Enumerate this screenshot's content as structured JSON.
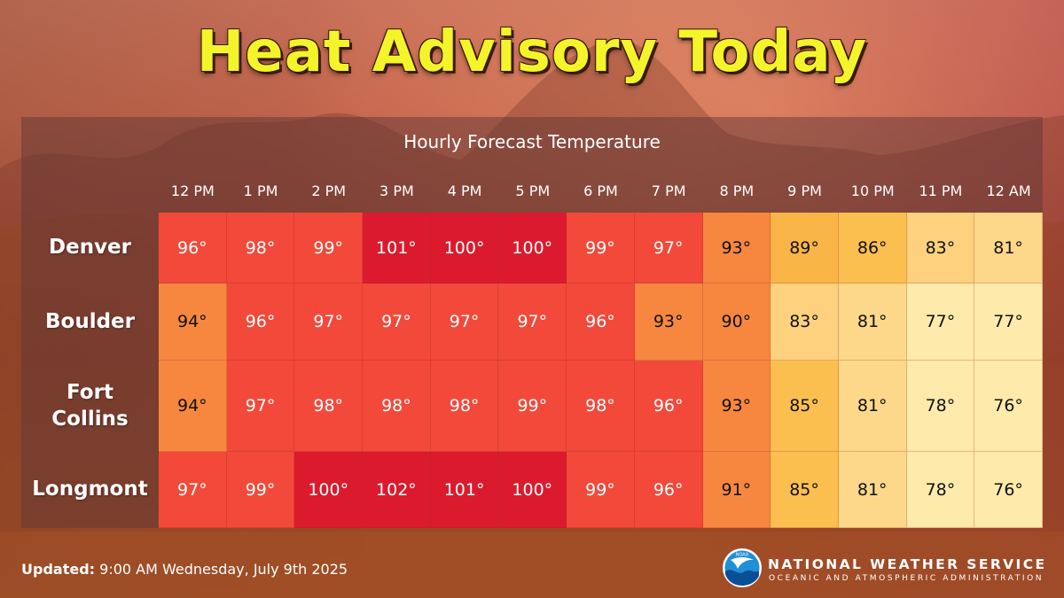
{
  "title": "Heat Advisory Today",
  "subtitle": "Hourly Forecast Temperature",
  "hours": [
    "12 PM",
    "1 PM",
    "2 PM",
    "3 PM",
    "4 PM",
    "5 PM",
    "6 PM",
    "7 PM",
    "8 PM",
    "9 PM",
    "10 PM",
    "11 PM",
    "12 AM"
  ],
  "rows": [
    {
      "city": "Denver",
      "temps": [
        "96°",
        "98°",
        "99°",
        "101°",
        "100°",
        "100°",
        "99°",
        "97°",
        "93°",
        "89°",
        "86°",
        "83°",
        "81°"
      ]
    },
    {
      "city": "Boulder",
      "temps": [
        "94°",
        "96°",
        "97°",
        "97°",
        "97°",
        "97°",
        "96°",
        "93°",
        "90°",
        "83°",
        "81°",
        "77°",
        "77°"
      ]
    },
    {
      "city": "Fort Collins",
      "temps": [
        "94°",
        "97°",
        "98°",
        "98°",
        "98°",
        "99°",
        "98°",
        "96°",
        "93°",
        "85°",
        "81°",
        "78°",
        "76°"
      ]
    },
    {
      "city": "Longmont",
      "temps": [
        "97°",
        "99°",
        "100°",
        "102°",
        "101°",
        "100°",
        "99°",
        "96°",
        "91°",
        "85°",
        "81°",
        "78°",
        "76°"
      ]
    }
  ],
  "footer": {
    "label": "Updated",
    "text": "9:00 AM Wednesday, July 9th 2025"
  },
  "agency": {
    "name": "NATIONAL WEATHER SERVICE",
    "subname": "OCEANIC AND ATMOSPHERIC ADMINISTRATION",
    "logo_text": "NOAA"
  },
  "colors": {
    "title": "#f4f42a",
    "scale": [
      {
        "min": 100,
        "bg": "#dc1a2e",
        "text": "#ffffff"
      },
      {
        "min": 95,
        "bg": "#f2493a",
        "text": "#ffffff"
      },
      {
        "min": 90,
        "bg": "#f7873f",
        "text": "#111111"
      },
      {
        "min": 88,
        "bg": "#fab547",
        "text": "#111111"
      },
      {
        "min": 85,
        "bg": "#fbbf50",
        "text": "#111111"
      },
      {
        "min": 82,
        "bg": "#fdd17d",
        "text": "#111111"
      },
      {
        "min": 79,
        "bg": "#fdd88a",
        "text": "#111111"
      },
      {
        "min": 0,
        "bg": "#feeaaa",
        "text": "#111111"
      }
    ]
  }
}
